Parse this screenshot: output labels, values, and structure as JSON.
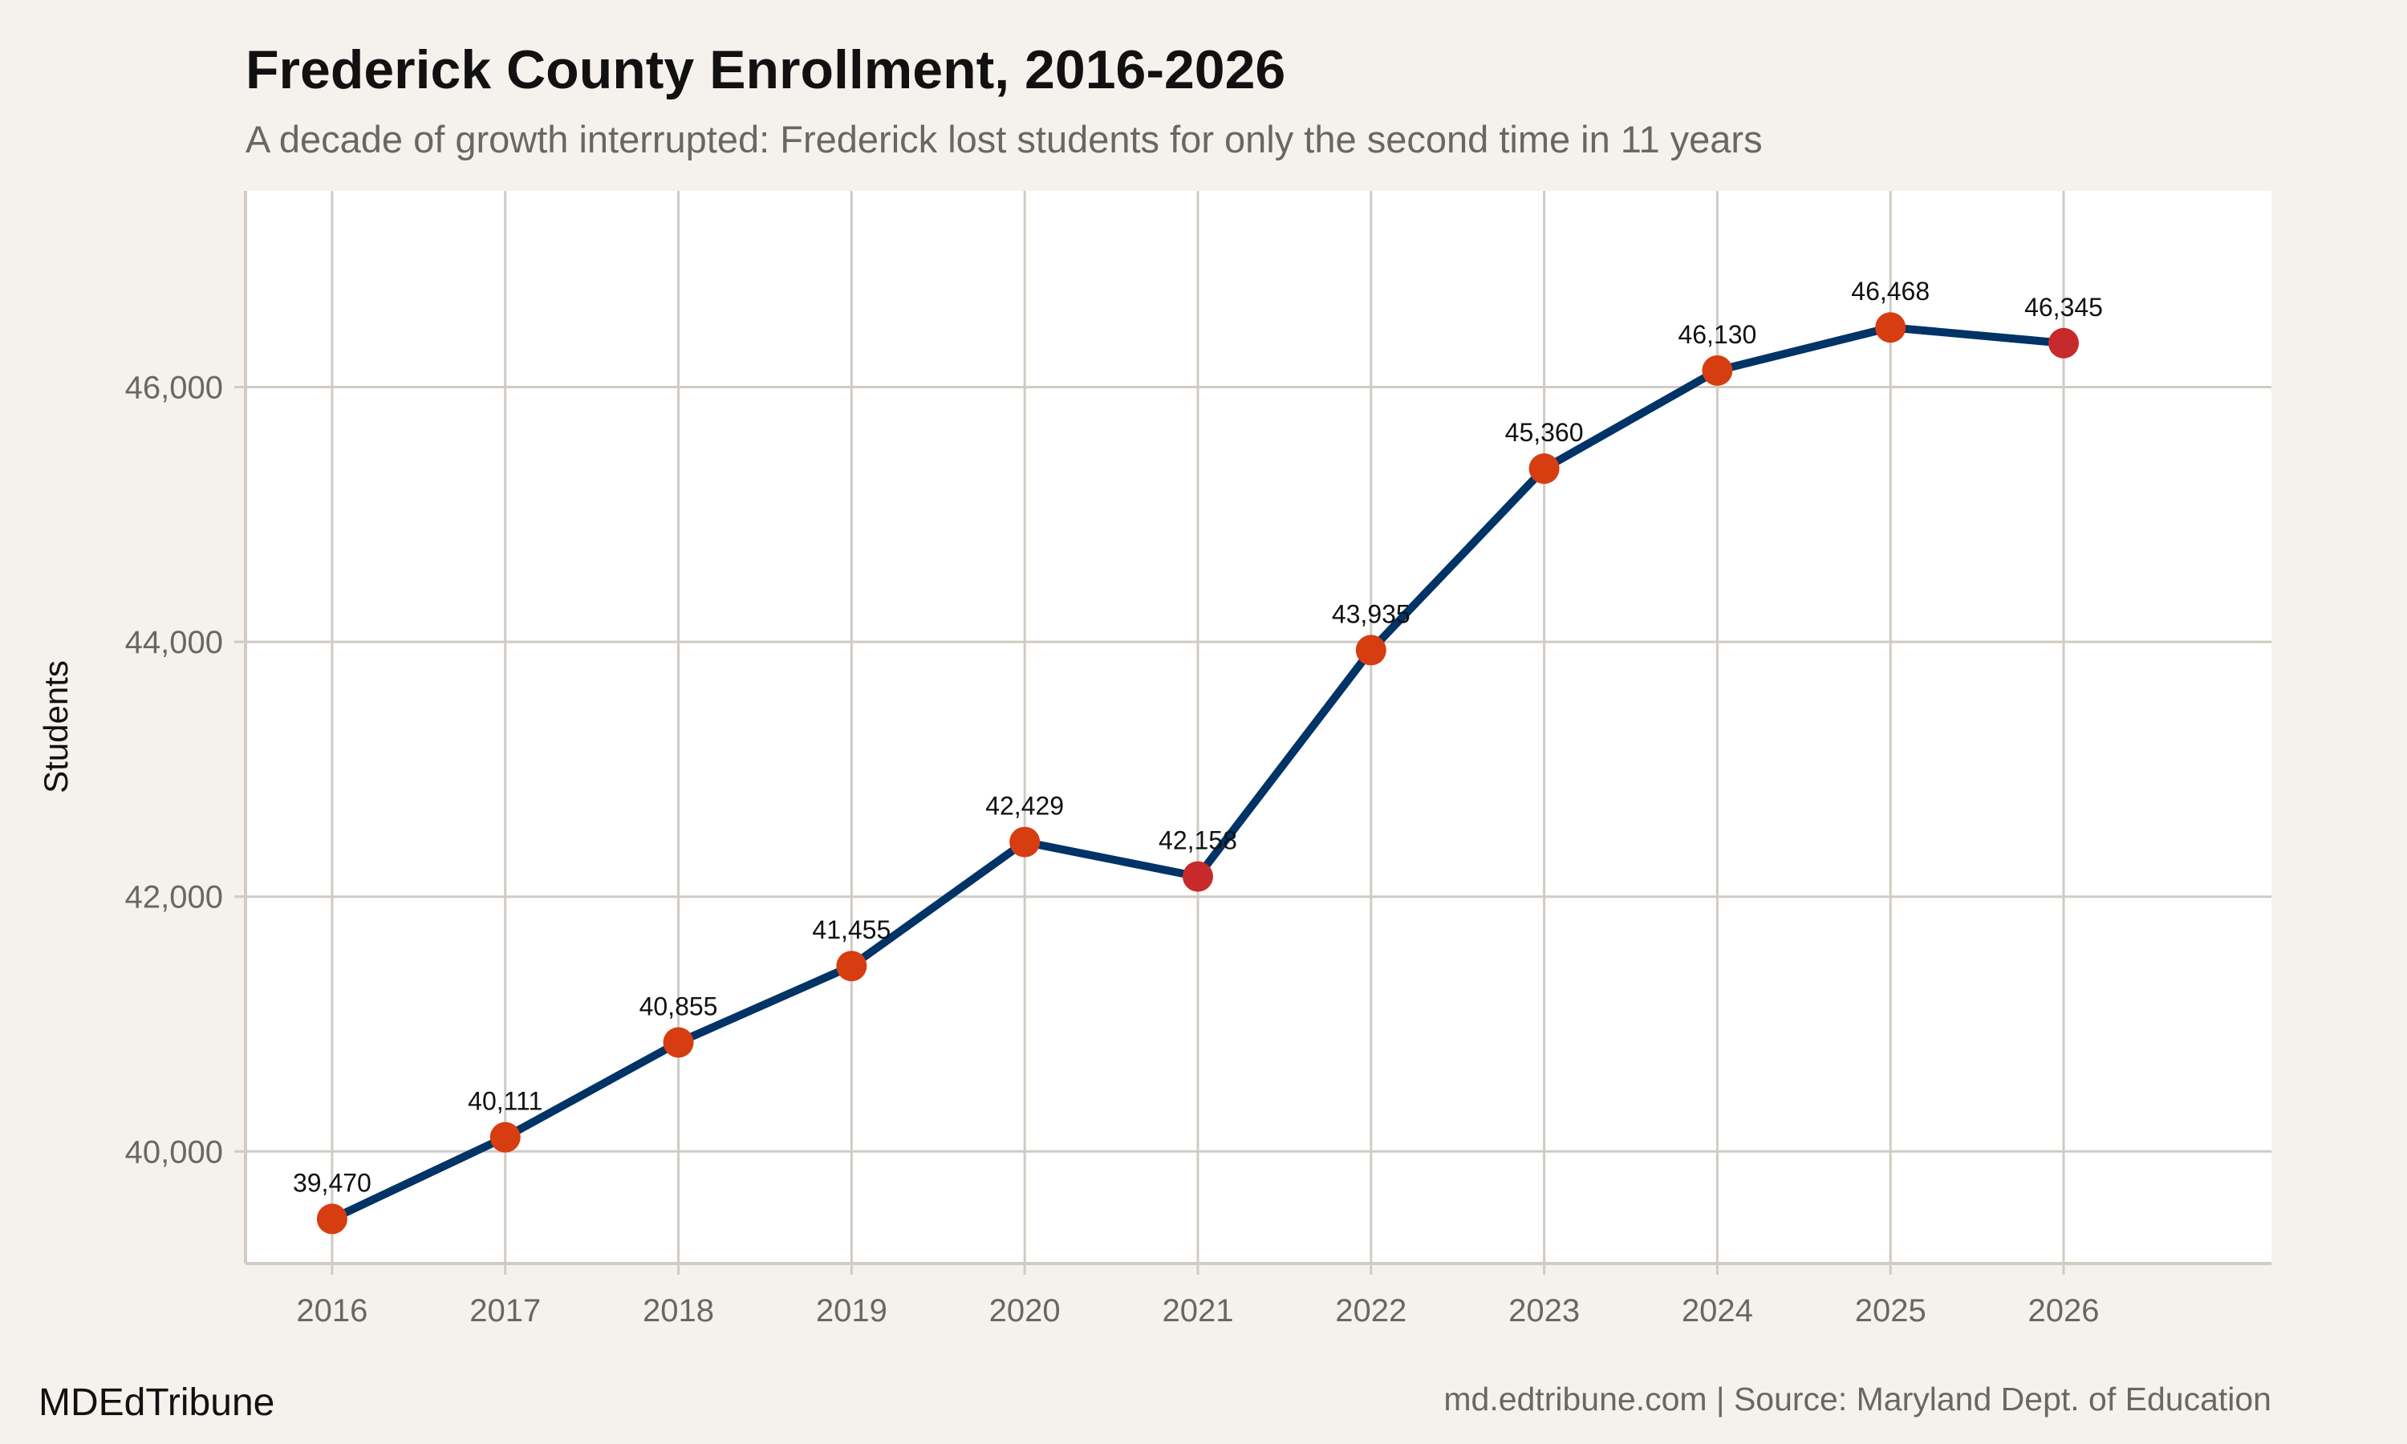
{
  "chart_data": {
    "type": "line",
    "title": "Frederick County Enrollment, 2016-2026",
    "subtitle": "A decade of growth interrupted: Frederick lost students for only the second time in 11 years",
    "xlabel": "",
    "ylabel": "Students",
    "x": [
      2016,
      2017,
      2018,
      2019,
      2020,
      2021,
      2022,
      2023,
      2024,
      2025,
      2026
    ],
    "values": [
      39470,
      40111,
      40855,
      41455,
      42429,
      42158,
      43935,
      45360,
      46130,
      46468,
      46345
    ],
    "data_labels": [
      "39,470",
      "40,111",
      "40,855",
      "41,455",
      "42,429",
      "42,158",
      "43,935",
      "45,360",
      "46,130",
      "46,468",
      "46,345"
    ],
    "x_ticks": [
      "2016",
      "2017",
      "2018",
      "2019",
      "2020",
      "2021",
      "2022",
      "2023",
      "2024",
      "2025",
      "2026"
    ],
    "y_ticks": [
      40000,
      42000,
      44000,
      46000
    ],
    "y_tick_labels": [
      "40,000",
      "42,000",
      "44,000",
      "46,000"
    ],
    "xlim": [
      2015.5,
      2027.2
    ],
    "ylim": [
      39120,
      47540
    ],
    "grid": true,
    "colors": {
      "line": "#003366",
      "point": "#d63d10",
      "point_decline": "#c62a2a",
      "grid": "#d0cbc3",
      "background": "#f5f2ed",
      "panel": "#ffffff"
    }
  },
  "footer": {
    "brand": "MDEdTribune",
    "source": "md.edtribune.com | Source: Maryland Dept. of Education"
  }
}
